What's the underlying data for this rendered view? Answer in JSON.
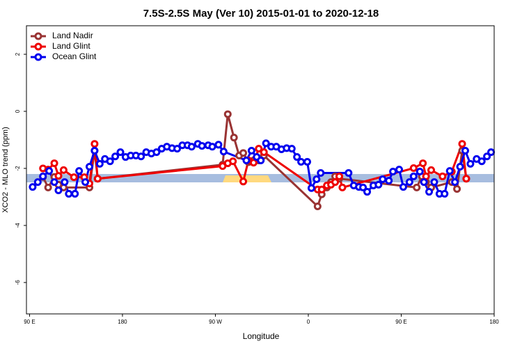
{
  "chart_data": {
    "type": "line",
    "title": "7.5S-2.5S May (Ver 10)   2015-01-01 to 2020-12-18",
    "xlabel": "Longitude",
    "ylabel": "XCO2 - MLO trend (ppm)",
    "xlim": [
      87,
      540
    ],
    "ylim": [
      -7.1,
      3
    ],
    "xticks": [
      {
        "value": 90,
        "label": "90 E"
      },
      {
        "value": 180,
        "label": "180"
      },
      {
        "value": 270,
        "label": "90 W"
      },
      {
        "value": 360,
        "label": "0"
      },
      {
        "value": 450,
        "label": "90 E"
      },
      {
        "value": 540,
        "label": "180"
      }
    ],
    "yticks": [
      -6,
      -4,
      -2,
      0,
      2
    ],
    "legend": "top-left",
    "series": [
      {
        "name": "Land Nadir",
        "color": "#993333",
        "x": [
          103,
          108,
          114,
          118,
          123,
          148,
          153,
          156,
          277,
          282,
          288,
          293,
          297,
          302,
          307,
          312,
          317,
          369,
          373,
          378,
          382,
          386,
          390,
          465,
          470,
          474,
          479,
          499,
          504,
          509,
          513
        ],
        "values": [
          -2.3,
          -2.67,
          -2.3,
          -2.57,
          -2.67,
          -2.67,
          -1.38,
          -2.36,
          -1.87,
          -0.1,
          -0.92,
          -1.55,
          -1.46,
          -1.78,
          -1.72,
          -1.72,
          -1.55,
          -3.33,
          -2.91,
          -2.67,
          -2.48,
          -2.28,
          -2.36,
          -2.67,
          -2.28,
          -2.48,
          -2.67,
          -2.48,
          -2.72,
          -1.38,
          -2.36
        ]
      },
      {
        "name": "Land Glint",
        "color": "#ee0000",
        "x": [
          103,
          108,
          114,
          118,
          123,
          133,
          143,
          148,
          153,
          156,
          277,
          282,
          287,
          297,
          302,
          307,
          312,
          317,
          369,
          373,
          378,
          382,
          386,
          390,
          393,
          462,
          471,
          474,
          479,
          490,
          499,
          509,
          513
        ],
        "values": [
          -2.0,
          -2.04,
          -1.82,
          -2.26,
          -2.06,
          -2.31,
          -2.31,
          -2.53,
          -1.14,
          -2.36,
          -1.92,
          -1.82,
          -1.75,
          -2.46,
          -1.72,
          -1.8,
          -1.31,
          -1.43,
          -2.74,
          -2.74,
          -2.6,
          -2.57,
          -2.48,
          -2.28,
          -2.67,
          -1.99,
          -1.82,
          -2.28,
          -2.06,
          -2.28,
          -2.11,
          -1.14,
          -2.36
        ]
      },
      {
        "name": "Ocean Glint",
        "color": "#0000ee",
        "x": [
          93,
          98,
          103,
          109,
          114,
          118,
          124,
          128,
          134,
          138,
          144,
          148,
          153,
          158,
          163,
          168,
          173,
          178,
          183,
          188,
          193,
          198,
          203,
          208,
          213,
          218,
          223,
          228,
          233,
          238,
          243,
          247,
          253,
          257,
          263,
          267,
          273,
          278,
          300,
          305,
          310,
          314,
          319,
          324,
          329,
          334,
          339,
          344,
          349,
          353,
          359,
          363,
          368,
          372,
          399,
          404,
          409,
          413,
          417,
          423,
          428,
          432,
          438,
          442,
          448,
          452,
          458,
          462,
          468,
          472,
          477,
          482,
          487,
          492,
          497,
          502,
          507,
          512,
          517,
          523,
          528,
          533,
          537
        ],
        "values": [
          -2.65,
          -2.48,
          -2.28,
          -2.09,
          -2.48,
          -2.77,
          -2.48,
          -2.89,
          -2.89,
          -2.09,
          -2.48,
          -1.94,
          -1.38,
          -1.84,
          -1.67,
          -1.75,
          -1.58,
          -1.43,
          -1.6,
          -1.55,
          -1.55,
          -1.58,
          -1.43,
          -1.48,
          -1.43,
          -1.31,
          -1.24,
          -1.29,
          -1.31,
          -1.19,
          -1.19,
          -1.24,
          -1.14,
          -1.21,
          -1.19,
          -1.24,
          -1.17,
          -1.41,
          -1.72,
          -1.38,
          -1.6,
          -1.72,
          -1.12,
          -1.24,
          -1.24,
          -1.33,
          -1.29,
          -1.31,
          -1.6,
          -1.77,
          -1.77,
          -2.69,
          -2.38,
          -2.16,
          -2.16,
          -2.6,
          -2.65,
          -2.67,
          -2.82,
          -2.6,
          -2.57,
          -2.38,
          -2.43,
          -2.11,
          -2.04,
          -2.65,
          -2.48,
          -2.28,
          -2.11,
          -2.48,
          -2.82,
          -2.48,
          -2.89,
          -2.89,
          -2.09,
          -2.48,
          -1.94,
          -1.38,
          -1.84,
          -1.67,
          -1.75,
          -1.58,
          -1.43
        ]
      }
    ]
  }
}
